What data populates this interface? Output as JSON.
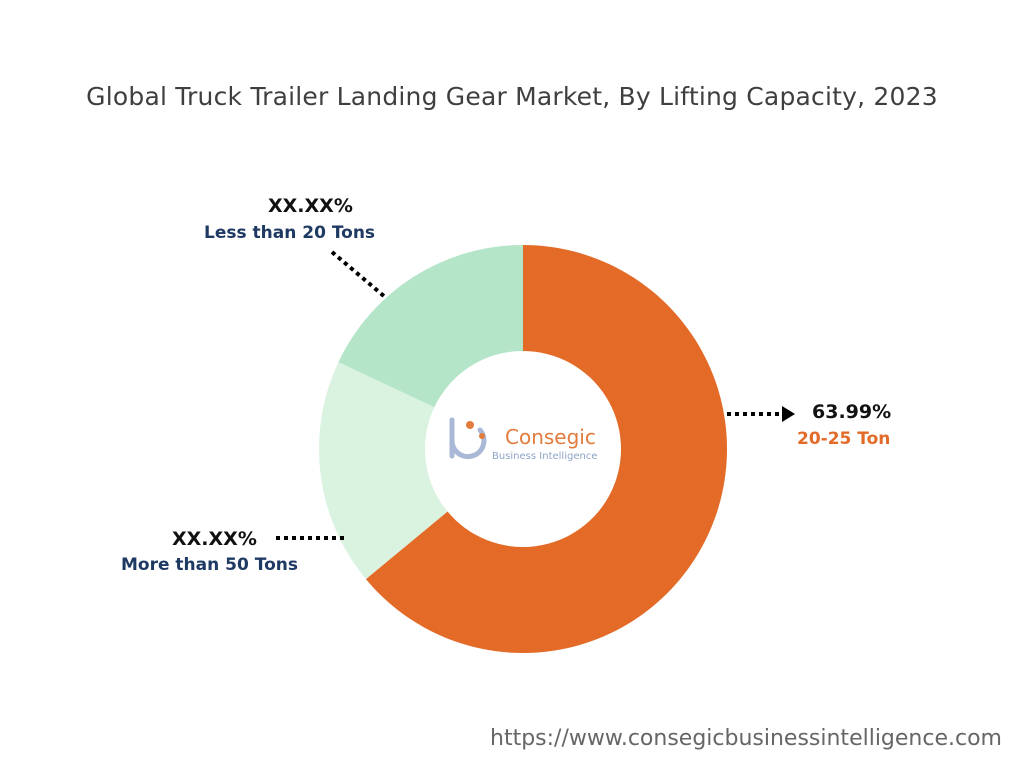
{
  "header": {
    "title": "Global Truck Trailer Landing Gear Market, By Lifting Capacity, 2023"
  },
  "logo": {
    "name": "Consegic",
    "tagline": "Business Intelligence"
  },
  "footer": {
    "url": "https://www.consegicbusinessintelligence.com"
  },
  "chart_data": {
    "type": "pie",
    "variant": "donut",
    "title": "Global Truck Trailer Landing Gear Market, By Lifting Capacity, 2023",
    "slices": [
      {
        "label": "20-25 Ton",
        "value": 63.99,
        "value_label": "63.99%",
        "color": "#e36a27",
        "label_color": "#e36a27"
      },
      {
        "label": "More than 50 Tons",
        "value": 18.01,
        "value_label": "XX.XX%",
        "color": "#daf3e0",
        "label_color": "#1e3a63"
      },
      {
        "label": "Less than 20 Tons",
        "value": 18.0,
        "value_label": "XX.XX%",
        "color": "#b5e5c8",
        "label_color": "#1e3a63"
      }
    ]
  }
}
